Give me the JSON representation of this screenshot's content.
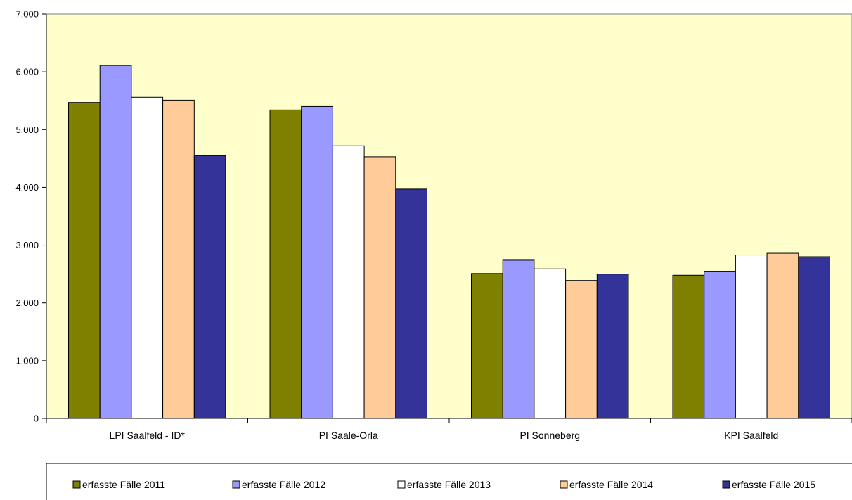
{
  "chart_data": {
    "type": "bar",
    "title": "",
    "xlabel": "",
    "ylabel": "",
    "ylim": [
      0,
      7000
    ],
    "yticks": [
      0,
      1000,
      2000,
      3000,
      4000,
      5000,
      6000,
      7000
    ],
    "ytick_labels": [
      "0",
      "1.000",
      "2.000",
      "3.000",
      "4.000",
      "5.000",
      "6.000",
      "7.000"
    ],
    "categories": [
      "LPI Saalfeld - ID*",
      "PI Saale-Orla",
      "PI Sonneberg",
      "KPI Saalfeld"
    ],
    "series": [
      {
        "name": "erfasste Fälle 2011",
        "color": "#808000",
        "values": [
          5470,
          5340,
          2510,
          2480
        ]
      },
      {
        "name": "erfasste Fälle 2012",
        "color": "#9999FF",
        "values": [
          6110,
          5400,
          2740,
          2540
        ]
      },
      {
        "name": "erfasste Fälle 2013",
        "color": "#FFFFFF",
        "values": [
          5560,
          4720,
          2590,
          2830
        ]
      },
      {
        "name": "erfasste Fälle 2014",
        "color": "#FFCC99",
        "values": [
          5510,
          4530,
          2390,
          2860
        ]
      },
      {
        "name": "erfasste Fälle 2015",
        "color": "#333399",
        "values": [
          4550,
          3970,
          2500,
          2800
        ]
      }
    ],
    "plot_background": "#FFFFCC",
    "grid": false,
    "legend_position": "bottom"
  }
}
